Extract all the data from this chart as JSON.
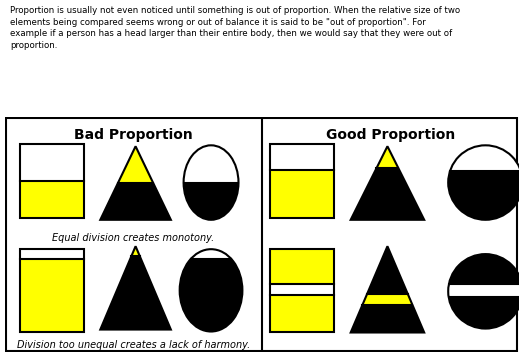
{
  "text_top": "Proportion is usually not even noticed until something is out of proportion. When the relative size of two\nelements being compared seems wrong or out of balance it is said to be \"out of proportion\". For\nexample if a person has a head larger than their entire body, then we would say that they were out of\nproportion.",
  "bad_title": "Bad Proportion",
  "good_title": "Good Proportion",
  "caption_top": "Equal division creates monotony.",
  "caption_bottom": "Division too unequal creates a lack of harmony.",
  "yellow": "#FFFF00",
  "black": "#000000",
  "white": "#FFFFFF"
}
